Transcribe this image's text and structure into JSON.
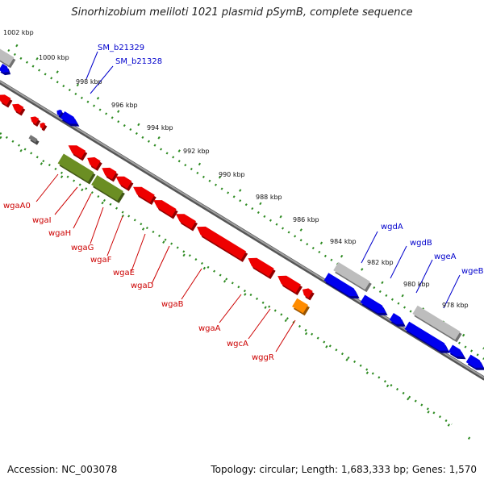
{
  "title": "Sinorhizobium meliloti 1021 plasmid pSymB, complete sequence",
  "footer": {
    "accession": "Accession: NC_003078",
    "summary": "Topology: circular; Length: 1,683,333 bp; Genes: 1,570"
  },
  "colors": {
    "forward_gene": "#0000ee",
    "reverse_gene": "#ee0000",
    "cog_gene": "#6b8e23",
    "other_gene": "#ff8c00",
    "uncharacterized": "#bdbdbd",
    "backbone": "#8a8a8a",
    "scale_dots": "#2e8b22",
    "forward_label": "#0000cc",
    "reverse_label": "#cc0000"
  },
  "scale_labels": [
    "1002 kbp",
    "1000 kbp",
    "998 kbp",
    "996 kbp",
    "994 kbp",
    "992 kbp",
    "990 kbp",
    "988 kbp",
    "986 kbp",
    "984 kbp",
    "982 kbp",
    "980 kbp",
    "978 kbp"
  ],
  "forward_labels": [
    "SM_b21329",
    "SM_b21328",
    "wgdA",
    "wgdB",
    "wgeA",
    "wgeB"
  ],
  "reverse_labels": [
    "wgaA0",
    "wgaI",
    "wgaH",
    "wgaG",
    "wgaF",
    "wgaE",
    "wgaD",
    "wgaB",
    "wgaA",
    "wgcA",
    "wggR"
  ]
}
